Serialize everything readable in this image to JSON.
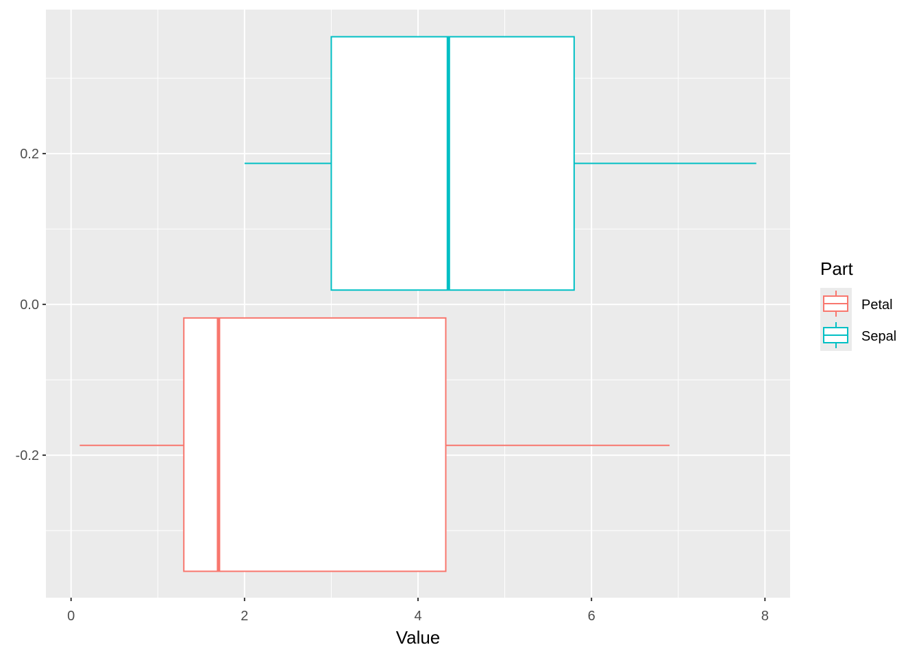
{
  "chart_data": {
    "type": "boxplot",
    "orientation": "horizontal",
    "title": "",
    "xlabel": "Value",
    "ylabel": "",
    "xlim": [
      -0.29,
      8.29
    ],
    "ylim": [
      -0.389,
      0.391
    ],
    "x_ticks": [
      0,
      2,
      4,
      6,
      8
    ],
    "x_tick_labels": [
      "0",
      "2",
      "4",
      "6",
      "8"
    ],
    "y_ticks": [
      -0.2,
      0.0,
      0.2
    ],
    "y_tick_labels": [
      "-0.2",
      "0.0",
      "0.2"
    ],
    "grid": true,
    "legend": {
      "title": "Part",
      "position": "right",
      "entries": [
        "Petal",
        "Sepal"
      ]
    },
    "series": [
      {
        "name": "Petal",
        "color": "#F8766D",
        "min": 0.1,
        "q1": 1.3,
        "median": 1.7,
        "q3": 4.32,
        "max": 6.9,
        "ymin": -0.354,
        "ymax": -0.018,
        "ycenter": -0.187
      },
      {
        "name": "Sepal",
        "color": "#00BFC4",
        "min": 2.0,
        "q1": 3.0,
        "median": 4.35,
        "q3": 5.8,
        "max": 7.9,
        "ymin": 0.019,
        "ymax": 0.355,
        "ycenter": 0.187
      }
    ],
    "panel_background": "#EBEBEB",
    "grid_color": "#FFFFFF"
  }
}
